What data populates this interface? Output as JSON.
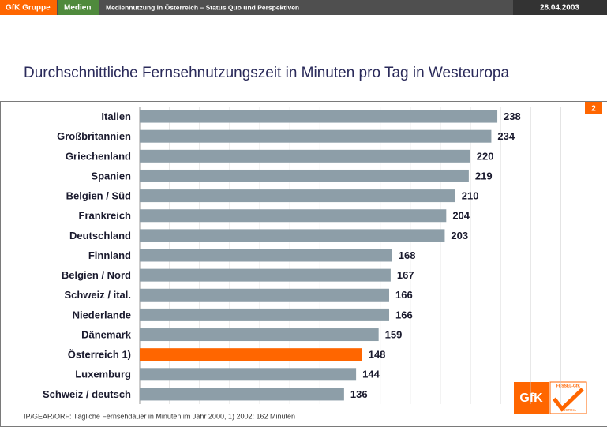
{
  "header": {
    "company": "GfK Gruppe",
    "section": "Medien",
    "topic": "Mediennutzung in Österreich – Status Quo und Perspektiven",
    "date": "28.04.2003"
  },
  "page_number": "2",
  "chart_data": {
    "type": "bar",
    "orientation": "horizontal",
    "title": "Durchschnittliche Fernsehnutzungszeit in Minuten pro Tag in Westeuropa",
    "categories": [
      "Italien",
      "Großbritannien",
      "Griechenland",
      "Spanien",
      "Belgien / Süd",
      "Frankreich",
      "Deutschland",
      "Finnland",
      "Belgien / Nord",
      "Schweiz / ital.",
      "Niederlande",
      "Dänemark",
      "Österreich 1)",
      "Luxemburg",
      "Schweiz / deutsch"
    ],
    "values": [
      238,
      234,
      220,
      219,
      210,
      204,
      203,
      168,
      167,
      166,
      166,
      159,
      148,
      144,
      136
    ],
    "colors": [
      "#8d9ea8",
      "#8d9ea8",
      "#8d9ea8",
      "#8d9ea8",
      "#8d9ea8",
      "#8d9ea8",
      "#8d9ea8",
      "#8d9ea8",
      "#8d9ea8",
      "#8d9ea8",
      "#8d9ea8",
      "#8d9ea8",
      "#ff6600",
      "#8d9ea8",
      "#8d9ea8"
    ],
    "xlim": [
      0,
      280
    ],
    "xticks": [
      0,
      20,
      40,
      60,
      80,
      100,
      120,
      140,
      160,
      180,
      200,
      220,
      240,
      260,
      280
    ],
    "grid": true,
    "source": "IP/GEAR/ORF: Tägliche Fernsehdauer in Minuten im Jahr 2000, 1) 2002: 162 Minuten"
  },
  "logo": {
    "text": "GfK",
    "partner": "FESSEL-GfK",
    "country": "AUSTRIA"
  }
}
